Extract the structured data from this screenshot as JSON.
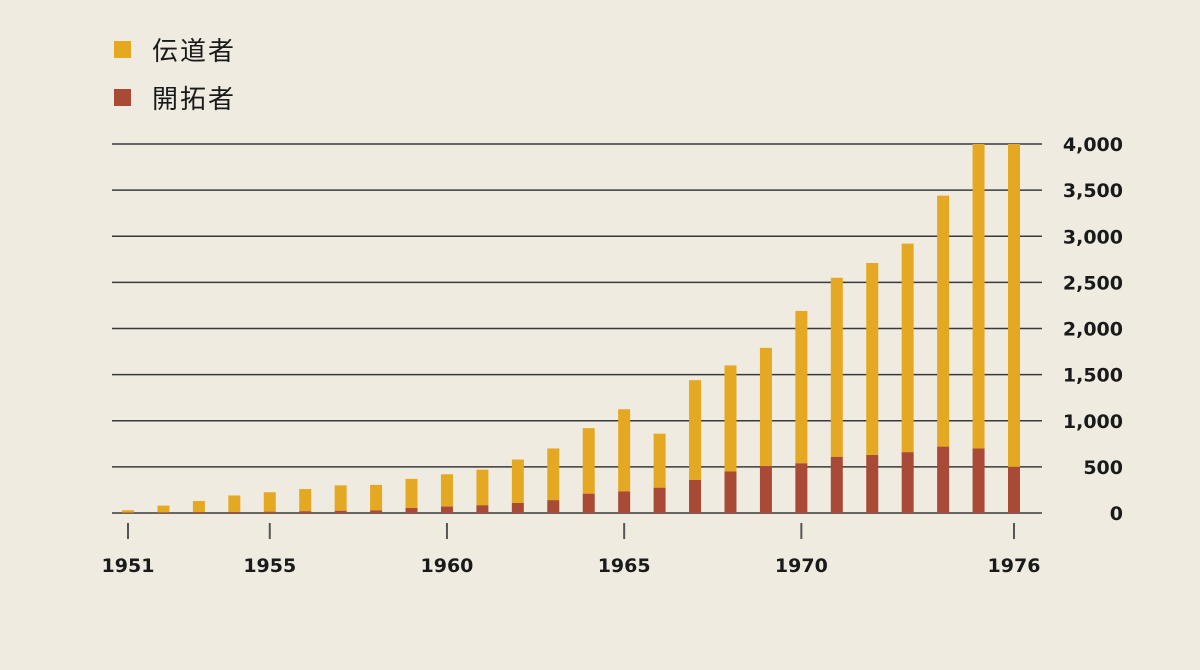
{
  "chart_data": {
    "type": "bar",
    "stacked": true,
    "x": [
      1951,
      1952,
      1953,
      1954,
      1955,
      1956,
      1957,
      1958,
      1959,
      1960,
      1961,
      1962,
      1963,
      1964,
      1965,
      1966,
      1967,
      1968,
      1969,
      1970,
      1971,
      1972,
      1973,
      1974,
      1975,
      1976
    ],
    "x_tick_labels": [
      "1951",
      "1955",
      "1960",
      "1965",
      "1970",
      "1976"
    ],
    "y_tick_labels": [
      "0",
      "500",
      "1,000",
      "1,500",
      "2,000",
      "2,500",
      "3,000",
      "3,500",
      "4,000"
    ],
    "ylim": [
      0,
      4000
    ],
    "y_ticks": [
      0,
      500,
      1000,
      1500,
      2000,
      2500,
      3000,
      3500,
      4000
    ],
    "y_axis_side": "right",
    "grid": true,
    "legend_position": "top-left",
    "series": [
      {
        "name": "開拓者",
        "color": "#a84a35",
        "values": [
          5,
          8,
          10,
          12,
          15,
          20,
          25,
          30,
          55,
          70,
          85,
          110,
          140,
          210,
          235,
          275,
          360,
          450,
          510,
          540,
          610,
          630,
          660,
          720,
          700,
          500
        ]
      },
      {
        "name": "伝道者",
        "color": "#e5a823",
        "values": [
          25,
          72,
          120,
          178,
          210,
          240,
          275,
          275,
          315,
          350,
          385,
          470,
          560,
          710,
          890,
          585,
          1080,
          1150,
          1280,
          1650,
          1940,
          2080,
          2260,
          2720,
          3300,
          3500
        ]
      }
    ]
  }
}
